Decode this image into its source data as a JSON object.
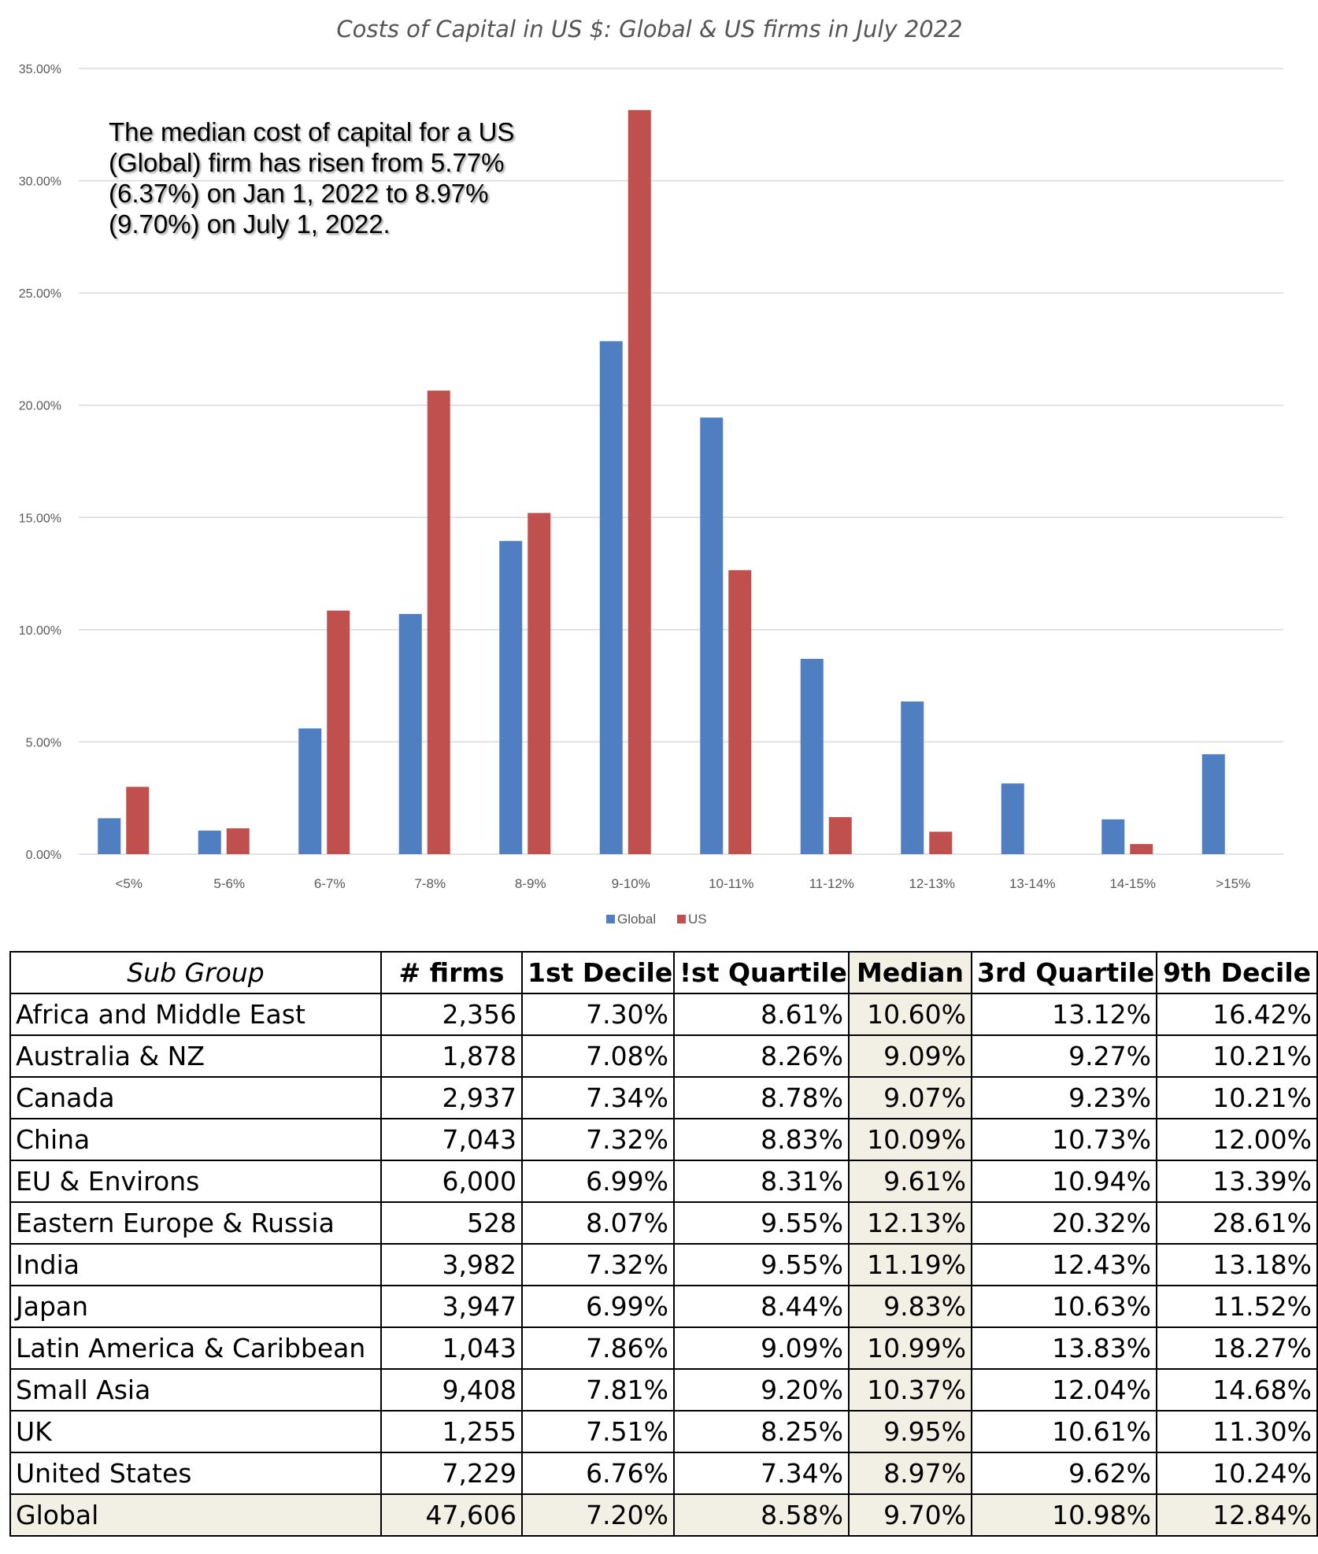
{
  "chart_data": {
    "type": "bar",
    "title": "Costs of Capital in US $: Global & US firms in July 2022",
    "categories": [
      "<5%",
      "5-6%",
      "6-7%",
      "7-8%",
      "8-9%",
      "9-10%",
      "10-11%",
      "11-12%",
      "12-13%",
      "13-14%",
      "14-15%",
      ">15%"
    ],
    "series": [
      {
        "name": "Global",
        "color": "#4f7fc0",
        "values": [
          1.6,
          1.05,
          5.6,
          10.7,
          13.95,
          22.85,
          19.45,
          8.7,
          6.8,
          3.15,
          1.55,
          4.45
        ]
      },
      {
        "name": "US",
        "color": "#c0504d",
        "values": [
          3.0,
          1.15,
          10.85,
          20.65,
          15.2,
          33.15,
          12.65,
          1.65,
          1.0,
          0.0,
          0.45,
          0.0
        ]
      }
    ],
    "y_ticks": [
      "0.00%",
      "5.00%",
      "10.00%",
      "15.00%",
      "20.00%",
      "25.00%",
      "30.00%",
      "35.00%"
    ],
    "ylim": [
      0,
      35
    ],
    "grid": true,
    "legend": "bottom-center",
    "annotation": "The median cost of capital for a US (Global) firm has risen from 5.77% (6.37%) on Jan 1, 2022 to 8.97% (9.70%) on July 1, 2022."
  },
  "table": {
    "headers": [
      "Sub Group",
      "# firms",
      "1st Decile",
      "!st Quartile",
      "Median",
      "3rd Quartile",
      "9th Decile"
    ],
    "rows": [
      [
        "Africa and Middle East",
        "2,356",
        "7.30%",
        "8.61%",
        "10.60%",
        "13.12%",
        "16.42%"
      ],
      [
        "Australia & NZ",
        "1,878",
        "7.08%",
        "8.26%",
        "9.09%",
        "9.27%",
        "10.21%"
      ],
      [
        "Canada",
        "2,937",
        "7.34%",
        "8.78%",
        "9.07%",
        "9.23%",
        "10.21%"
      ],
      [
        "China",
        "7,043",
        "7.32%",
        "8.83%",
        "10.09%",
        "10.73%",
        "12.00%"
      ],
      [
        "EU & Environs",
        "6,000",
        "6.99%",
        "8.31%",
        "9.61%",
        "10.94%",
        "13.39%"
      ],
      [
        "Eastern Europe & Russia",
        "528",
        "8.07%",
        "9.55%",
        "12.13%",
        "20.32%",
        "28.61%"
      ],
      [
        "India",
        "3,982",
        "7.32%",
        "9.55%",
        "11.19%",
        "12.43%",
        "13.18%"
      ],
      [
        "Japan",
        "3,947",
        "6.99%",
        "8.44%",
        "9.83%",
        "10.63%",
        "11.52%"
      ],
      [
        "Latin America & Caribbean",
        "1,043",
        "7.86%",
        "9.09%",
        "10.99%",
        "13.83%",
        "18.27%"
      ],
      [
        "Small Asia",
        "9,408",
        "7.81%",
        "9.20%",
        "10.37%",
        "12.04%",
        "14.68%"
      ],
      [
        "UK",
        "1,255",
        "7.51%",
        "8.25%",
        "9.95%",
        "10.61%",
        "11.30%"
      ],
      [
        "United States",
        "7,229",
        "6.76%",
        "7.34%",
        "8.97%",
        "9.62%",
        "10.24%"
      ]
    ],
    "total": [
      "Global",
      "47,606",
      "7.20%",
      "8.58%",
      "9.70%",
      "10.98%",
      "12.84%"
    ]
  }
}
